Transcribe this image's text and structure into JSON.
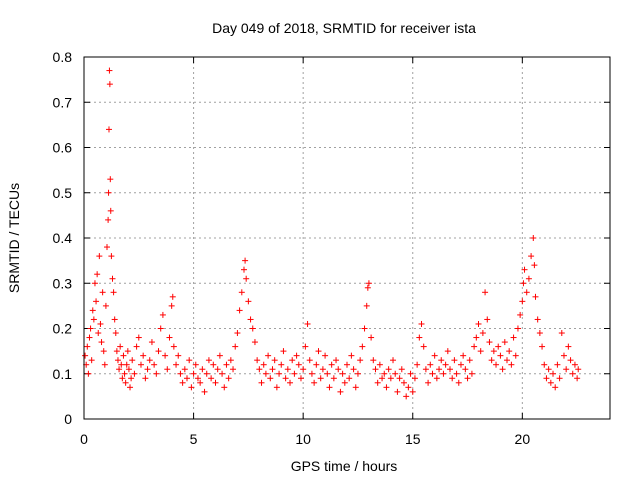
{
  "chart_data": {
    "type": "scatter",
    "title": "Day 049 of 2018, SRMTID for receiver ista",
    "xlabel": "GPS time / hours",
    "ylabel": "SRMTID / TECUs",
    "xlim": [
      0,
      24
    ],
    "ylim": [
      0,
      0.8
    ],
    "xticks": [
      0,
      5,
      10,
      15,
      20
    ],
    "xtick_labels": [
      "0",
      "5",
      "10",
      "15",
      "20"
    ],
    "yticks": [
      0,
      0.1,
      0.2,
      0.3,
      0.4,
      0.5,
      0.6,
      0.7,
      0.8
    ],
    "ytick_labels": [
      "0",
      "0.1",
      "0.2",
      "0.3",
      "0.4",
      "0.5",
      "0.6",
      "0.7",
      "0.8"
    ],
    "grid": true,
    "marker": "+",
    "color": "#ff0000",
    "series": [
      {
        "name": "SRMTID",
        "points": [
          [
            0.05,
            0.14
          ],
          [
            0.1,
            0.12
          ],
          [
            0.15,
            0.16
          ],
          [
            0.2,
            0.1
          ],
          [
            0.25,
            0.18
          ],
          [
            0.3,
            0.2
          ],
          [
            0.35,
            0.13
          ],
          [
            0.4,
            0.24
          ],
          [
            0.45,
            0.22
          ],
          [
            0.5,
            0.3
          ],
          [
            0.55,
            0.26
          ],
          [
            0.6,
            0.32
          ],
          [
            0.65,
            0.19
          ],
          [
            0.7,
            0.36
          ],
          [
            0.75,
            0.21
          ],
          [
            0.8,
            0.17
          ],
          [
            0.85,
            0.28
          ],
          [
            0.9,
            0.15
          ],
          [
            0.95,
            0.12
          ],
          [
            1.0,
            0.25
          ],
          [
            1.05,
            0.38
          ],
          [
            1.1,
            0.44
          ],
          [
            1.12,
            0.5
          ],
          [
            1.14,
            0.64
          ],
          [
            1.16,
            0.77
          ],
          [
            1.18,
            0.74
          ],
          [
            1.2,
            0.53
          ],
          [
            1.22,
            0.46
          ],
          [
            1.25,
            0.36
          ],
          [
            1.3,
            0.31
          ],
          [
            1.35,
            0.28
          ],
          [
            1.4,
            0.22
          ],
          [
            1.45,
            0.19
          ],
          [
            1.5,
            0.15
          ],
          [
            1.55,
            0.13
          ],
          [
            1.6,
            0.11
          ],
          [
            1.65,
            0.16
          ],
          [
            1.7,
            0.12
          ],
          [
            1.75,
            0.09
          ],
          [
            1.8,
            0.14
          ],
          [
            1.85,
            0.1
          ],
          [
            1.9,
            0.08
          ],
          [
            1.95,
            0.12
          ],
          [
            2.0,
            0.15
          ],
          [
            2.05,
            0.11
          ],
          [
            2.1,
            0.07
          ],
          [
            2.15,
            0.09
          ],
          [
            2.2,
            0.13
          ],
          [
            2.3,
            0.1
          ],
          [
            2.4,
            0.16
          ],
          [
            2.5,
            0.18
          ],
          [
            2.6,
            0.12
          ],
          [
            2.7,
            0.14
          ],
          [
            2.8,
            0.09
          ],
          [
            2.9,
            0.11
          ],
          [
            3.0,
            0.13
          ],
          [
            3.1,
            0.17
          ],
          [
            3.2,
            0.12
          ],
          [
            3.3,
            0.1
          ],
          [
            3.4,
            0.15
          ],
          [
            3.5,
            0.2
          ],
          [
            3.6,
            0.23
          ],
          [
            3.7,
            0.14
          ],
          [
            3.8,
            0.11
          ],
          [
            3.9,
            0.18
          ],
          [
            4.0,
            0.25
          ],
          [
            4.05,
            0.27
          ],
          [
            4.1,
            0.16
          ],
          [
            4.2,
            0.12
          ],
          [
            4.3,
            0.14
          ],
          [
            4.4,
            0.1
          ],
          [
            4.5,
            0.08
          ],
          [
            4.6,
            0.11
          ],
          [
            4.7,
            0.09
          ],
          [
            4.8,
            0.13
          ],
          [
            4.9,
            0.07
          ],
          [
            5.0,
            0.1
          ],
          [
            5.1,
            0.12
          ],
          [
            5.2,
            0.09
          ],
          [
            5.3,
            0.08
          ],
          [
            5.4,
            0.11
          ],
          [
            5.5,
            0.06
          ],
          [
            5.6,
            0.1
          ],
          [
            5.7,
            0.13
          ],
          [
            5.8,
            0.09
          ],
          [
            5.9,
            0.12
          ],
          [
            6.0,
            0.08
          ],
          [
            6.1,
            0.11
          ],
          [
            6.2,
            0.14
          ],
          [
            6.3,
            0.1
          ],
          [
            6.4,
            0.07
          ],
          [
            6.5,
            0.12
          ],
          [
            6.6,
            0.09
          ],
          [
            6.7,
            0.13
          ],
          [
            6.8,
            0.11
          ],
          [
            6.9,
            0.16
          ],
          [
            7.0,
            0.19
          ],
          [
            7.1,
            0.24
          ],
          [
            7.2,
            0.28
          ],
          [
            7.3,
            0.33
          ],
          [
            7.35,
            0.35
          ],
          [
            7.4,
            0.31
          ],
          [
            7.5,
            0.26
          ],
          [
            7.6,
            0.22
          ],
          [
            7.7,
            0.2
          ],
          [
            7.8,
            0.17
          ],
          [
            7.9,
            0.13
          ],
          [
            8.0,
            0.11
          ],
          [
            8.1,
            0.08
          ],
          [
            8.2,
            0.12
          ],
          [
            8.3,
            0.1
          ],
          [
            8.4,
            0.14
          ],
          [
            8.5,
            0.09
          ],
          [
            8.6,
            0.11
          ],
          [
            8.7,
            0.13
          ],
          [
            8.8,
            0.07
          ],
          [
            8.9,
            0.1
          ],
          [
            9.0,
            0.12
          ],
          [
            9.1,
            0.15
          ],
          [
            9.2,
            0.09
          ],
          [
            9.3,
            0.11
          ],
          [
            9.4,
            0.08
          ],
          [
            9.5,
            0.13
          ],
          [
            9.6,
            0.1
          ],
          [
            9.7,
            0.14
          ],
          [
            9.8,
            0.12
          ],
          [
            9.9,
            0.09
          ],
          [
            10.0,
            0.11
          ],
          [
            10.1,
            0.16
          ],
          [
            10.2,
            0.21
          ],
          [
            10.3,
            0.13
          ],
          [
            10.4,
            0.1
          ],
          [
            10.5,
            0.08
          ],
          [
            10.6,
            0.12
          ],
          [
            10.7,
            0.15
          ],
          [
            10.8,
            0.09
          ],
          [
            10.9,
            0.11
          ],
          [
            11.0,
            0.14
          ],
          [
            11.1,
            0.1
          ],
          [
            11.2,
            0.07
          ],
          [
            11.3,
            0.12
          ],
          [
            11.4,
            0.09
          ],
          [
            11.5,
            0.13
          ],
          [
            11.6,
            0.11
          ],
          [
            11.7,
            0.06
          ],
          [
            11.8,
            0.1
          ],
          [
            11.9,
            0.08
          ],
          [
            12.0,
            0.12
          ],
          [
            12.1,
            0.09
          ],
          [
            12.2,
            0.14
          ],
          [
            12.3,
            0.11
          ],
          [
            12.4,
            0.07
          ],
          [
            12.5,
            0.1
          ],
          [
            12.6,
            0.13
          ],
          [
            12.7,
            0.16
          ],
          [
            12.8,
            0.2
          ],
          [
            12.9,
            0.25
          ],
          [
            12.95,
            0.29
          ],
          [
            13.0,
            0.3
          ],
          [
            13.1,
            0.18
          ],
          [
            13.2,
            0.13
          ],
          [
            13.3,
            0.11
          ],
          [
            13.4,
            0.08
          ],
          [
            13.5,
            0.12
          ],
          [
            13.6,
            0.09
          ],
          [
            13.7,
            0.1
          ],
          [
            13.8,
            0.07
          ],
          [
            13.9,
            0.11
          ],
          [
            14.0,
            0.09
          ],
          [
            14.1,
            0.13
          ],
          [
            14.2,
            0.1
          ],
          [
            14.3,
            0.06
          ],
          [
            14.4,
            0.09
          ],
          [
            14.5,
            0.11
          ],
          [
            14.6,
            0.08
          ],
          [
            14.7,
            0.05
          ],
          [
            14.8,
            0.07
          ],
          [
            14.9,
            0.1
          ],
          [
            15.0,
            0.06
          ],
          [
            15.1,
            0.09
          ],
          [
            15.2,
            0.12
          ],
          [
            15.3,
            0.18
          ],
          [
            15.4,
            0.21
          ],
          [
            15.5,
            0.16
          ],
          [
            15.6,
            0.11
          ],
          [
            15.7,
            0.08
          ],
          [
            15.8,
            0.12
          ],
          [
            15.9,
            0.1
          ],
          [
            16.0,
            0.14
          ],
          [
            16.1,
            0.09
          ],
          [
            16.2,
            0.11
          ],
          [
            16.3,
            0.13
          ],
          [
            16.4,
            0.1
          ],
          [
            16.5,
            0.12
          ],
          [
            16.6,
            0.15
          ],
          [
            16.7,
            0.11
          ],
          [
            16.8,
            0.09
          ],
          [
            16.9,
            0.13
          ],
          [
            17.0,
            0.1
          ],
          [
            17.1,
            0.08
          ],
          [
            17.2,
            0.12
          ],
          [
            17.3,
            0.14
          ],
          [
            17.4,
            0.11
          ],
          [
            17.5,
            0.09
          ],
          [
            17.6,
            0.13
          ],
          [
            17.7,
            0.1
          ],
          [
            17.8,
            0.16
          ],
          [
            17.9,
            0.18
          ],
          [
            18.0,
            0.21
          ],
          [
            18.1,
            0.15
          ],
          [
            18.2,
            0.19
          ],
          [
            18.3,
            0.28
          ],
          [
            18.4,
            0.22
          ],
          [
            18.5,
            0.17
          ],
          [
            18.6,
            0.13
          ],
          [
            18.7,
            0.15
          ],
          [
            18.8,
            0.12
          ],
          [
            18.9,
            0.16
          ],
          [
            19.0,
            0.14
          ],
          [
            19.1,
            0.11
          ],
          [
            19.2,
            0.17
          ],
          [
            19.3,
            0.13
          ],
          [
            19.4,
            0.15
          ],
          [
            19.5,
            0.12
          ],
          [
            19.6,
            0.18
          ],
          [
            19.7,
            0.14
          ],
          [
            19.8,
            0.2
          ],
          [
            19.9,
            0.23
          ],
          [
            20.0,
            0.26
          ],
          [
            20.05,
            0.3
          ],
          [
            20.1,
            0.33
          ],
          [
            20.2,
            0.28
          ],
          [
            20.3,
            0.31
          ],
          [
            20.4,
            0.36
          ],
          [
            20.5,
            0.4
          ],
          [
            20.55,
            0.34
          ],
          [
            20.6,
            0.27
          ],
          [
            20.7,
            0.22
          ],
          [
            20.8,
            0.19
          ],
          [
            20.9,
            0.16
          ],
          [
            21.0,
            0.12
          ],
          [
            21.1,
            0.09
          ],
          [
            21.2,
            0.11
          ],
          [
            21.3,
            0.08
          ],
          [
            21.4,
            0.1
          ],
          [
            21.5,
            0.07
          ],
          [
            21.6,
            0.12
          ],
          [
            21.7,
            0.09
          ],
          [
            21.8,
            0.19
          ],
          [
            21.9,
            0.14
          ],
          [
            22.0,
            0.11
          ],
          [
            22.1,
            0.16
          ],
          [
            22.2,
            0.13
          ],
          [
            22.3,
            0.1
          ],
          [
            22.4,
            0.12
          ],
          [
            22.5,
            0.09
          ],
          [
            22.55,
            0.11
          ]
        ]
      }
    ]
  }
}
